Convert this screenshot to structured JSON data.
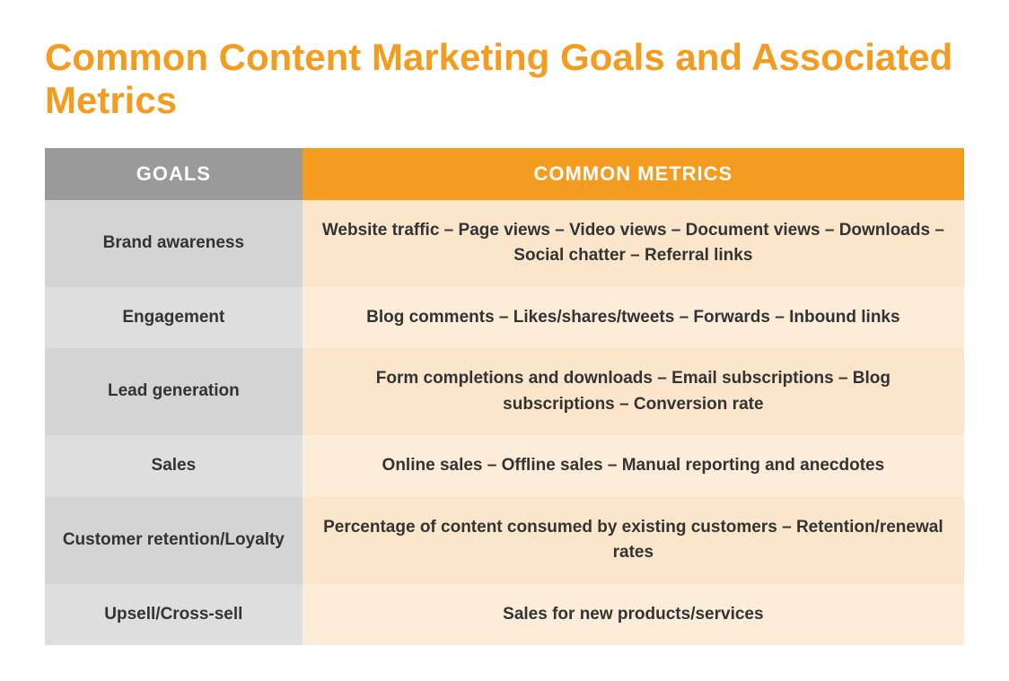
{
  "title": "Common Content Marketing Goals and Associated Metrics",
  "columns": {
    "goals": "GOALS",
    "metrics": "COMMON METRICS"
  },
  "rows": [
    {
      "goal": "Brand awareness",
      "metrics": "Website traffic – Page views – Video views – Document views – Downloads – Social chatter – Referral links"
    },
    {
      "goal": "Engagement",
      "metrics": "Blog comments – Likes/shares/tweets – Forwards – Inbound links"
    },
    {
      "goal": "Lead generation",
      "metrics": "Form completions and downloads – Email subscriptions – Blog subscriptions – Conversion rate"
    },
    {
      "goal": "Sales",
      "metrics": "Online sales – Offline sales – Manual reporting and anecdotes"
    },
    {
      "goal": "Customer retention/Loyalty",
      "metrics": "Percentage of content consumed by existing customers – Retention/renewal rates"
    },
    {
      "goal": "Upsell/Cross-sell",
      "metrics": "Sales for new products/services"
    }
  ],
  "style": {
    "title_color": "#f39c1f",
    "title_fontsize": 42,
    "header_goals_bg": "#9a9a9a",
    "header_metrics_bg": "#f39c1f",
    "header_text_color": "#ffffff",
    "header_fontsize": 22,
    "cell_text_color": "#333333",
    "cell_fontsize": 19,
    "goal_cell_bg": "#d4d4d4",
    "goal_cell_bg_alt": "#dedede",
    "metric_cell_bg": "#fce6cb",
    "metric_cell_bg_alt": "#fdecd7",
    "goals_col_width_pct": 28,
    "metrics_col_width_pct": 72,
    "font_family": "Segoe UI, Helvetica Neue, Arial, sans-serif"
  }
}
